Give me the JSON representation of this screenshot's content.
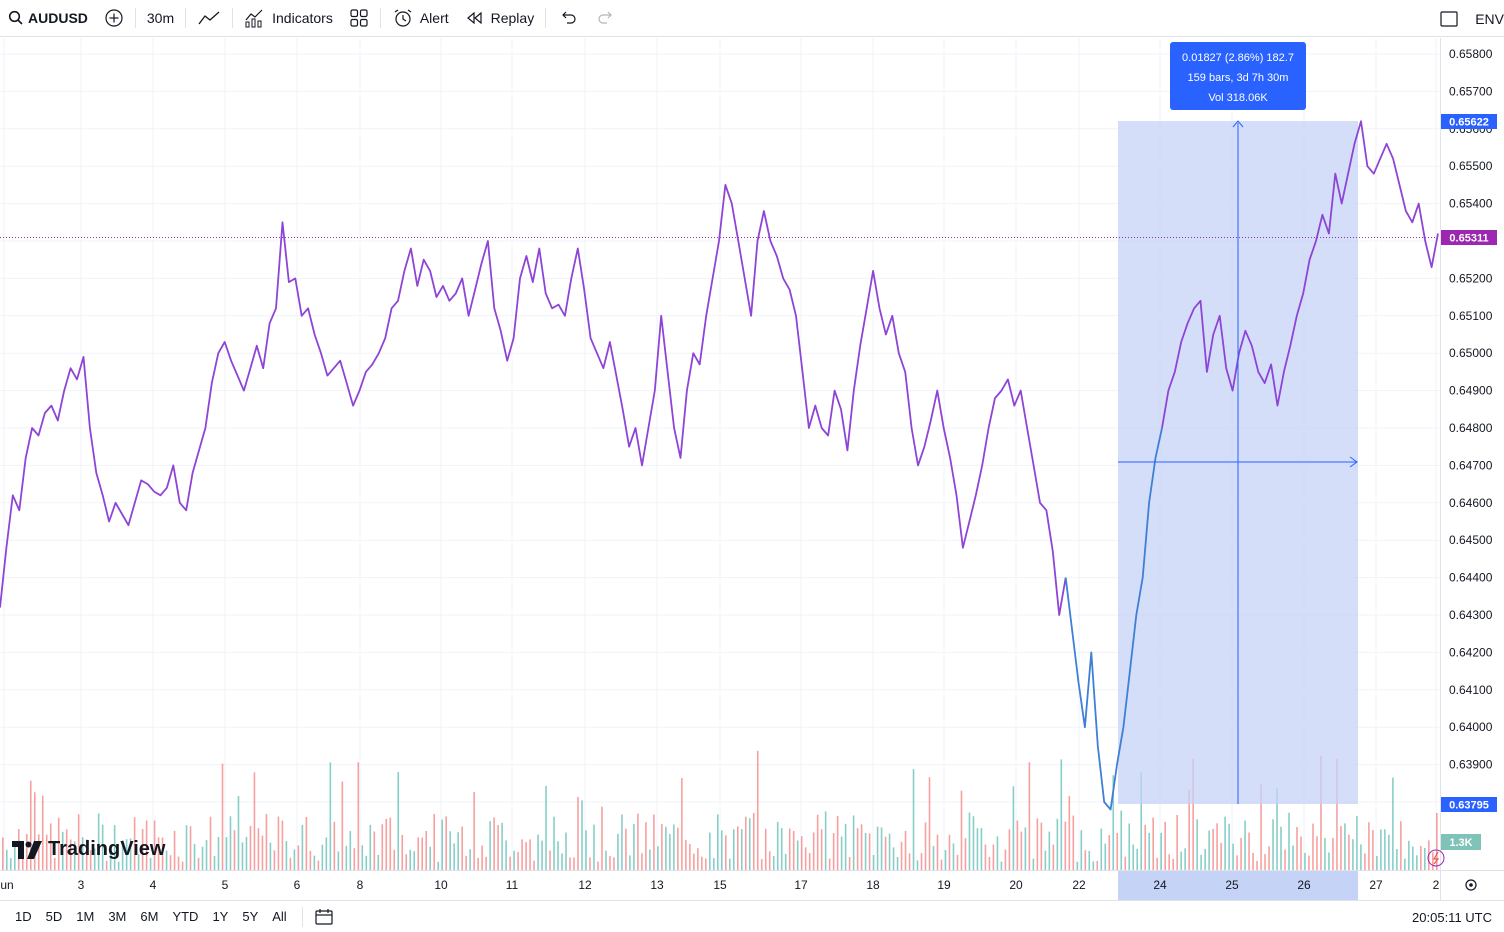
{
  "toolbar": {
    "symbol": "AUDUSD",
    "interval": "30m",
    "indicators_label": "Indicators",
    "alert_label": "Alert",
    "replay_label": "Replay",
    "right_label": "ENV"
  },
  "bottom": {
    "ranges": [
      "1D",
      "5D",
      "1M",
      "3M",
      "6M",
      "YTD",
      "1Y",
      "5Y",
      "All"
    ],
    "clock": "20:05:11 UTC"
  },
  "watermark": "TradingView",
  "measure": {
    "line1": "0.01827 (2.86%) 182.7",
    "line2": "159 bars, 3d 7h 30m",
    "line3": "Vol 318.06K",
    "high_price": "0.65622",
    "low_price": "0.63795"
  },
  "price_axis": {
    "labels": [
      "0.65800",
      "0.65700",
      "0.65600",
      "0.65500",
      "0.65400",
      "0.65300",
      "0.65200",
      "0.65100",
      "0.65000",
      "0.64900",
      "0.64800",
      "0.64700",
      "0.64600",
      "0.64500",
      "0.64400",
      "0.64300",
      "0.64200",
      "0.64100",
      "0.64000",
      "0.63900",
      "0.63800"
    ],
    "last_price": "0.65311",
    "volume_label": "1.3K"
  },
  "time_axis": {
    "labels": [
      "Jun",
      "3",
      "4",
      "5",
      "6",
      "8",
      "10",
      "11",
      "12",
      "13",
      "15",
      "17",
      "18",
      "19",
      "20",
      "22",
      "24",
      "25",
      "26",
      "27",
      "2"
    ]
  },
  "colors": {
    "line_purple": "#8e44d6",
    "line_blue": "#3f7fd6",
    "accent": "#2962ff",
    "last_price": "#9c27b0",
    "volume_up": "#26a69a",
    "volume_down": "#ef5350",
    "measure_fill": "#c5d3f7"
  },
  "chart_data": {
    "type": "line",
    "ylim": [
      0.6375,
      0.6583
    ],
    "series": [
      {
        "values": [
          0.6432,
          0.6448,
          0.6462,
          0.6458,
          0.6472,
          0.648,
          0.6478,
          0.6484,
          0.6486,
          0.6482,
          0.649,
          0.6496,
          0.6493,
          0.6499,
          0.648,
          0.6468,
          0.6462,
          0.6455,
          0.646,
          0.6457,
          0.6454,
          0.646,
          0.6466,
          0.6465,
          0.6463,
          0.6462,
          0.6464,
          0.647,
          0.646,
          0.6458,
          0.6468,
          0.6474,
          0.648,
          0.6492,
          0.65,
          0.6503,
          0.6498,
          0.6494,
          0.649,
          0.6496,
          0.6502,
          0.6496,
          0.6508,
          0.6512,
          0.6535,
          0.6519,
          0.652,
          0.651,
          0.6512,
          0.6505,
          0.65,
          0.6494,
          0.6496,
          0.6498,
          0.6492,
          0.6486,
          0.649,
          0.6495,
          0.6497,
          0.65,
          0.6504,
          0.6512,
          0.6514,
          0.6522,
          0.6528,
          0.6518,
          0.6525,
          0.6522,
          0.6515,
          0.6518,
          0.6514,
          0.6516,
          0.652,
          0.651,
          0.6517,
          0.6524,
          0.653,
          0.6512,
          0.6506,
          0.6498,
          0.6504,
          0.652,
          0.6526,
          0.6519,
          0.6528,
          0.6516,
          0.6512,
          0.6513,
          0.651,
          0.652,
          0.6528,
          0.6517,
          0.6504,
          0.65,
          0.6496,
          0.6503,
          0.6494,
          0.6485,
          0.6475,
          0.648,
          0.647,
          0.648,
          0.649,
          0.651,
          0.6495,
          0.648,
          0.6472,
          0.649,
          0.65,
          0.6497,
          0.651,
          0.652,
          0.653,
          0.6545,
          0.654,
          0.653,
          0.652,
          0.651,
          0.653,
          0.6538,
          0.653,
          0.6526,
          0.652,
          0.6517,
          0.651,
          0.6495,
          0.648,
          0.6486,
          0.648,
          0.6478,
          0.649,
          0.6485,
          0.6474,
          0.649,
          0.6502,
          0.6512,
          0.6522,
          0.6512,
          0.6505,
          0.651,
          0.65,
          0.6495,
          0.648,
          0.647,
          0.6475,
          0.6482,
          0.649,
          0.648,
          0.6472,
          0.6462,
          0.6448,
          0.6455,
          0.6462,
          0.647,
          0.648,
          0.6488,
          0.649,
          0.6493,
          0.6486,
          0.649,
          0.648,
          0.647,
          0.646,
          0.6458,
          0.6447,
          0.643,
          0.644,
          0.6426,
          0.6412,
          0.64,
          0.642,
          0.6395,
          0.638,
          0.6378,
          0.639,
          0.64,
          0.6415,
          0.643,
          0.644,
          0.646,
          0.6472,
          0.648,
          0.649,
          0.6495,
          0.6503,
          0.6508,
          0.6512,
          0.6514,
          0.6495,
          0.6505,
          0.651,
          0.6496,
          0.649,
          0.65,
          0.6506,
          0.6502,
          0.6495,
          0.6492,
          0.6497,
          0.6486,
          0.6495,
          0.6502,
          0.651,
          0.6516,
          0.6525,
          0.653,
          0.6537,
          0.6532,
          0.6548,
          0.654,
          0.6548,
          0.6556,
          0.6562,
          0.655,
          0.6548,
          0.6552,
          0.6556,
          0.6552,
          0.6545,
          0.6538,
          0.6535,
          0.654,
          0.653,
          0.6523,
          0.6532
        ]
      }
    ],
    "volume": {
      "count": 360,
      "max": 5.8
    }
  }
}
